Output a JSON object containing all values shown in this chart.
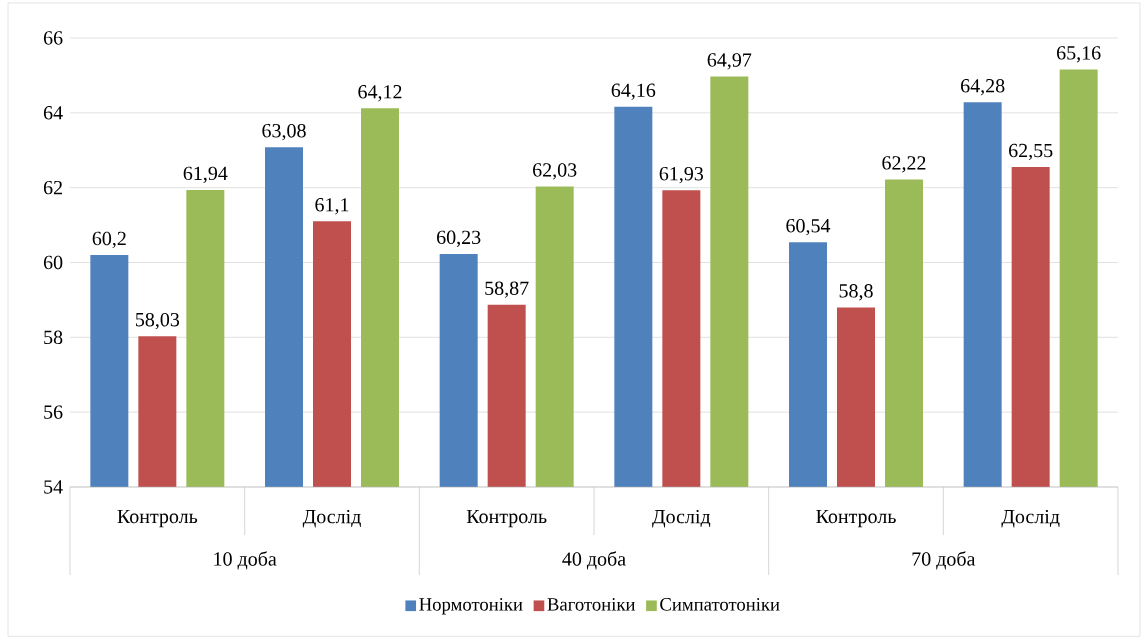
{
  "chart_data": {
    "type": "bar",
    "categories": [
      "Контроль",
      "Дослід",
      "Контроль",
      "Дослід",
      "Контроль",
      "Дослід"
    ],
    "annotations": [
      "10 доба",
      "40 доба",
      "70 доба"
    ],
    "series": [
      {
        "name": "Нормотоніки",
        "color": "#4f81bd",
        "values": [
          60.2,
          63.08,
          60.23,
          64.16,
          60.54,
          64.28
        ],
        "value_labels": [
          "60,2",
          "63,08",
          "60,23",
          "64,16",
          "60,54",
          "64,28"
        ]
      },
      {
        "name": "Ваготоніки",
        "color": "#c0504d",
        "values": [
          58.03,
          61.1,
          58.87,
          61.93,
          58.8,
          62.55
        ],
        "value_labels": [
          "58,03",
          "61,1",
          "58,87",
          "61,93",
          "58,8",
          "62,55"
        ]
      },
      {
        "name": "Симпатотоніки",
        "color": "#9bbb59",
        "values": [
          61.94,
          64.12,
          62.03,
          64.97,
          62.22,
          65.16
        ],
        "value_labels": [
          "61,94",
          "64,12",
          "62,03",
          "64,97",
          "62,22",
          "65,16"
        ]
      }
    ],
    "ylim": [
      54,
      66
    ],
    "yticks": [
      54,
      56,
      58,
      60,
      62,
      64,
      66
    ],
    "grid": "y",
    "legend": "bottom"
  }
}
